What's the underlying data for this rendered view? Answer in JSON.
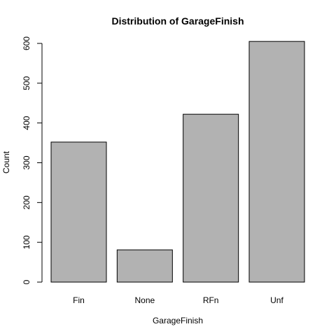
{
  "chart_data": {
    "type": "bar",
    "title": "Distribution of GarageFinish",
    "xlabel": "GarageFinish",
    "ylabel": "Count",
    "categories": [
      "Fin",
      "None",
      "RFn",
      "Unf"
    ],
    "values": [
      352,
      81,
      422,
      605
    ],
    "ylim": [
      0,
      600
    ],
    "yticks": [
      0,
      100,
      200,
      300,
      400,
      500,
      600
    ],
    "grid": false,
    "bar_color": "#b2b2b2"
  }
}
